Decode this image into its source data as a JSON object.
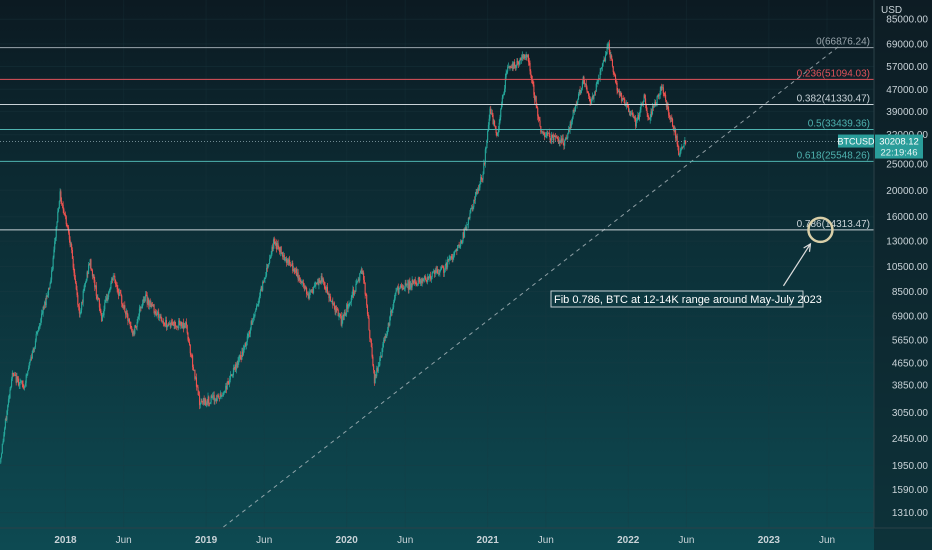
{
  "chart_data": {
    "type": "candlestick",
    "symbol": "BTCUSD",
    "price_scale": "log",
    "currency_label": "USD",
    "y_ticks": [
      85000,
      69000,
      57000,
      47000,
      39000,
      32000,
      25000,
      20000,
      16000,
      13000,
      10500,
      8500,
      6900,
      5650,
      4650,
      3850,
      3050,
      2450,
      1950,
      1590,
      1310
    ],
    "y_tick_labels": [
      "85000.00",
      "69000.00",
      "57000.00",
      "47000.00",
      "39000.00",
      "32000.00",
      "25000.00",
      "20000.00",
      "16000.00",
      "13000.00",
      "10500.00",
      "8500.00",
      "6900.00",
      "5650.00",
      "4650.00",
      "3850.00",
      "3050.00",
      "2450.00",
      "1950.00",
      "1590.00",
      "1310.00"
    ],
    "ylim": [
      1150,
      100000
    ],
    "x_ticks": [
      {
        "label": "2018",
        "date": "2018-01-01",
        "bold": true
      },
      {
        "label": "Jun",
        "date": "2018-06-01",
        "bold": false
      },
      {
        "label": "2019",
        "date": "2019-01-01",
        "bold": true
      },
      {
        "label": "Jun",
        "date": "2019-06-01",
        "bold": false
      },
      {
        "label": "2020",
        "date": "2020-01-01",
        "bold": true
      },
      {
        "label": "Jun",
        "date": "2020-06-01",
        "bold": false
      },
      {
        "label": "2021",
        "date": "2021-01-01",
        "bold": true
      },
      {
        "label": "Jun",
        "date": "2021-06-01",
        "bold": false
      },
      {
        "label": "2022",
        "date": "2022-01-01",
        "bold": true
      },
      {
        "label": "Jun",
        "date": "2022-06-01",
        "bold": false
      },
      {
        "label": "2023",
        "date": "2023-01-01",
        "bold": true
      },
      {
        "label": "Jun",
        "date": "2023-06-01",
        "bold": false
      }
    ],
    "xlim": [
      "2017-07-15",
      "2023-10-01"
    ],
    "fib_levels": [
      {
        "label": "0(66876.24)",
        "level": 0,
        "price": 66876.24,
        "color": "#9aa6ad"
      },
      {
        "label": "0.236(51094.03)",
        "level": 0.236,
        "price": 51094.03,
        "color": "#e0525b"
      },
      {
        "label": "0.382(41330.47)",
        "level": 0.382,
        "price": 41330.47,
        "color": "#c9d3d8"
      },
      {
        "label": "0.5(33439.36)",
        "level": 0.5,
        "price": 33439.36,
        "color": "#4fb3b0"
      },
      {
        "label": "0.618(25548.26)",
        "level": 0.618,
        "price": 25548.26,
        "color": "#4fb3b0"
      },
      {
        "label": "0.786(14313.47)",
        "level": 0.786,
        "price": 14313.47,
        "color": "#c9d3d8"
      }
    ],
    "last_price": {
      "symbol": "BTCUSD",
      "value": "30208.12",
      "countdown": "22:19:46",
      "price": 30208.12,
      "color": "#2a9d9a"
    },
    "trendline": {
      "start": {
        "date": "2019-02-15",
        "price": 1160
      },
      "end": {
        "date": "2023-07-10",
        "price": 69000
      },
      "style": "dashed"
    },
    "target_circle": {
      "date": "2023-05-15",
      "price": 14313
    },
    "annotation": {
      "text": "Fib 0.786, BTC at 12-14K range around May-July 2023"
    },
    "colors": {
      "up": "#26a69a",
      "down": "#ef5350",
      "background_top": "#0c1a22",
      "background_bottom": "#0d4a52",
      "grid": "#1c3a42"
    },
    "price_path": [
      [
        "2017-07-15",
        2000
      ],
      [
        "2017-08-15",
        4200
      ],
      [
        "2017-09-15",
        3800
      ],
      [
        "2017-10-20",
        6000
      ],
      [
        "2017-11-25",
        9500
      ],
      [
        "2017-12-17",
        19500
      ],
      [
        "2018-01-10",
        14000
      ],
      [
        "2018-02-06",
        7000
      ],
      [
        "2018-03-05",
        11000
      ],
      [
        "2018-04-05",
        6800
      ],
      [
        "2018-05-05",
        9700
      ],
      [
        "2018-06-25",
        5900
      ],
      [
        "2018-07-25",
        8200
      ],
      [
        "2018-09-15",
        6500
      ],
      [
        "2018-11-10",
        6400
      ],
      [
        "2018-12-15",
        3300
      ],
      [
        "2019-02-10",
        3500
      ],
      [
        "2019-04-10",
        5200
      ],
      [
        "2019-05-20",
        8200
      ],
      [
        "2019-06-26",
        13000
      ],
      [
        "2019-08-15",
        10300
      ],
      [
        "2019-09-25",
        8300
      ],
      [
        "2019-10-28",
        9400
      ],
      [
        "2019-12-18",
        6600
      ],
      [
        "2020-02-12",
        10300
      ],
      [
        "2020-03-13",
        4000
      ],
      [
        "2020-05-10",
        8600
      ],
      [
        "2020-07-25",
        9500
      ],
      [
        "2020-09-10",
        10300
      ],
      [
        "2020-10-25",
        13000
      ],
      [
        "2020-12-20",
        23000
      ],
      [
        "2021-01-08",
        40000
      ],
      [
        "2021-01-25",
        31000
      ],
      [
        "2021-02-20",
        56000
      ],
      [
        "2021-03-15",
        58000
      ],
      [
        "2021-04-14",
        63500
      ],
      [
        "2021-05-19",
        33000
      ],
      [
        "2021-06-22",
        31000
      ],
      [
        "2021-07-20",
        30000
      ],
      [
        "2021-09-06",
        51000
      ],
      [
        "2021-09-25",
        41000
      ],
      [
        "2021-11-10",
        68000
      ],
      [
        "2021-12-04",
        46000
      ],
      [
        "2022-01-22",
        35000
      ],
      [
        "2022-02-10",
        44000
      ],
      [
        "2022-02-24",
        37000
      ],
      [
        "2022-03-29",
        47500
      ],
      [
        "2022-05-09",
        30000
      ],
      [
        "2022-05-12",
        27000
      ],
      [
        "2022-05-31",
        30208
      ]
    ]
  }
}
